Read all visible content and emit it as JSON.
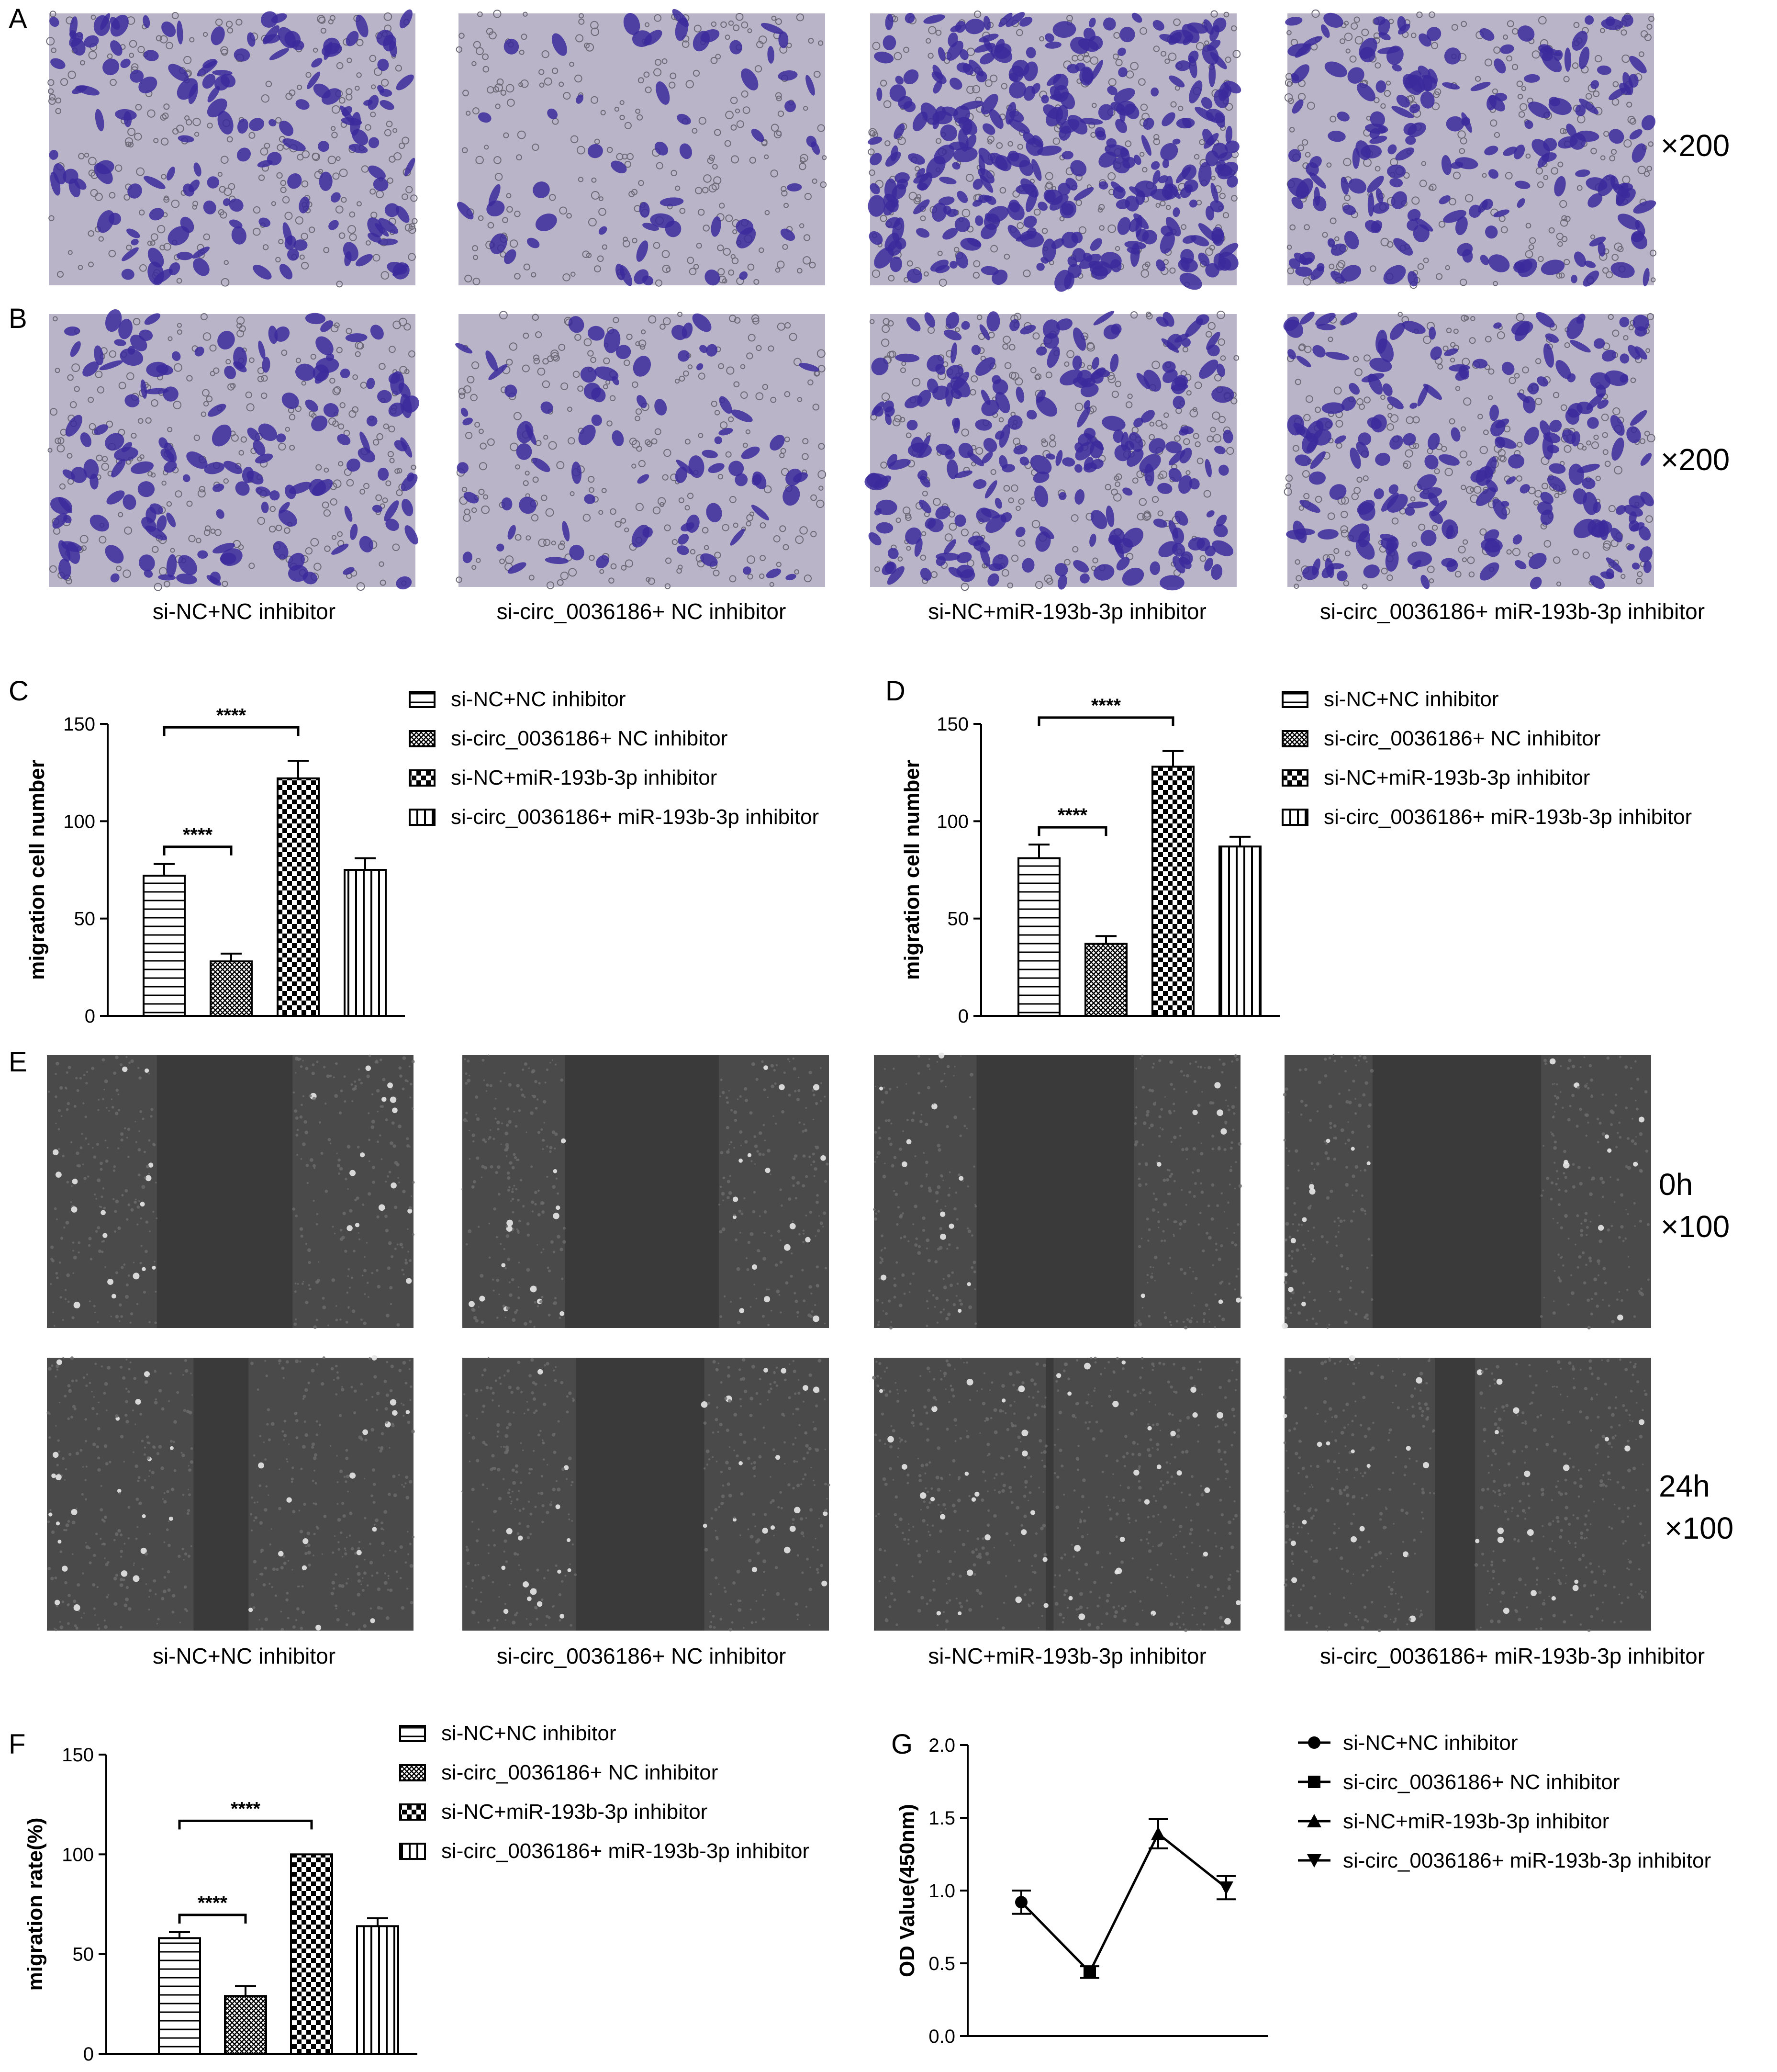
{
  "panel_labels": {
    "A": "A",
    "B": "B",
    "C": "C",
    "D": "D",
    "E": "E",
    "F": "F",
    "G": "G"
  },
  "groups": [
    "si-NC+NC inhibitor",
    "si-circ_0036186+ NC inhibitor",
    "si-NC+miR-193b-3p inhibitor",
    "si-circ_0036186+ miR-193b-3p inhibitor"
  ],
  "magnifications": {
    "A": "×200",
    "B": "×200",
    "E_0h_time": "0h",
    "E_0h_mag": "×100",
    "E_24h_time": "24h",
    "E_24h_mag": "×100"
  },
  "colors": {
    "stain_bg": "#b9b4c8",
    "stain_cell": "#3b2a9c",
    "scratch_bg": "#4a4a4a",
    "scratch_gap": "#3a3a3a",
    "ink": "#000000"
  },
  "chart_data": [
    {
      "id": "C",
      "type": "bar",
      "ylabel": "migration cell number",
      "ylim": [
        0,
        150
      ],
      "yticks": [
        0,
        50,
        100,
        150
      ],
      "categories": [
        "si-NC+NC inhibitor",
        "si-circ_0036186+ NC inhibitor",
        "si-NC+miR-193b-3p inhibitor",
        "si-circ_0036186+ miR-193b-3p inhibitor"
      ],
      "values": [
        72,
        28,
        122,
        75
      ],
      "errors": [
        6,
        4,
        9,
        6
      ],
      "significance": [
        {
          "from": 0,
          "to": 1,
          "label": "****"
        },
        {
          "from": 0,
          "to": 2,
          "label": "****"
        }
      ],
      "legend_position": "right"
    },
    {
      "id": "D",
      "type": "bar",
      "ylabel": "migration cell number",
      "ylim": [
        0,
        150
      ],
      "yticks": [
        0,
        50,
        100,
        150
      ],
      "categories": [
        "si-NC+NC inhibitor",
        "si-circ_0036186+ NC inhibitor",
        "si-NC+miR-193b-3p inhibitor",
        "si-circ_0036186+ miR-193b-3p inhibitor"
      ],
      "values": [
        81,
        37,
        128,
        87
      ],
      "errors": [
        7,
        4,
        8,
        5
      ],
      "significance": [
        {
          "from": 0,
          "to": 1,
          "label": "****"
        },
        {
          "from": 0,
          "to": 2,
          "label": "****"
        }
      ],
      "legend_position": "right"
    },
    {
      "id": "F",
      "type": "bar",
      "ylabel": "migration rate(%)",
      "ylim": [
        0,
        150
      ],
      "yticks": [
        0,
        50,
        100,
        150
      ],
      "categories": [
        "si-NC+NC inhibitor",
        "si-circ_0036186+ NC inhibitor",
        "si-NC+miR-193b-3p inhibitor",
        "si-circ_0036186+ miR-193b-3p inhibitor"
      ],
      "values": [
        58,
        29,
        100,
        64
      ],
      "errors": [
        3,
        5,
        0,
        4
      ],
      "significance": [
        {
          "from": 0,
          "to": 1,
          "label": "****"
        },
        {
          "from": 0,
          "to": 2,
          "label": "****"
        }
      ],
      "legend_position": "right"
    },
    {
      "id": "G",
      "type": "line",
      "ylabel": "OD Value(450nm)",
      "ylim": [
        0.0,
        2.0
      ],
      "yticks": [
        "0.0",
        "0.5",
        "1.0",
        "1.5",
        "2.0"
      ],
      "categories": [
        "si-NC+NC inhibitor",
        "si-circ_0036186+ NC inhibitor",
        "si-NC+miR-193b-3p inhibitor",
        "si-circ_0036186+ miR-193b-3p inhibitor"
      ],
      "values": [
        0.92,
        0.44,
        1.39,
        1.02
      ],
      "errors": [
        0.08,
        0.04,
        0.1,
        0.08
      ],
      "markers": [
        "circle",
        "square",
        "triangle-up",
        "triangle-down"
      ],
      "legend_position": "right"
    }
  ]
}
